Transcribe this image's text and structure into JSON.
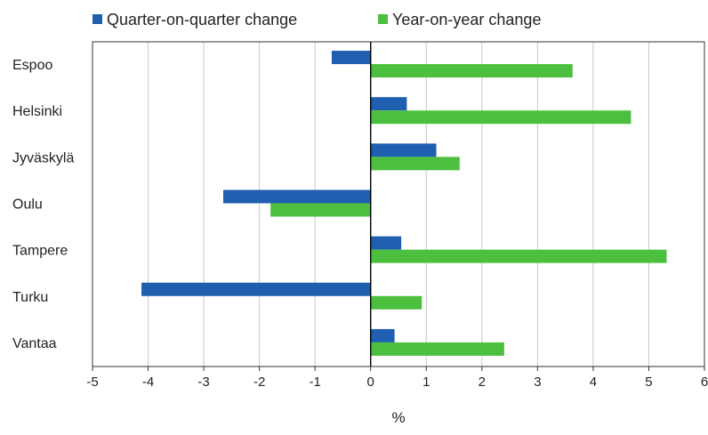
{
  "chart_data": {
    "type": "bar",
    "orientation": "horizontal",
    "categories": [
      "Espoo",
      "Helsinki",
      "Jyväskylä",
      "Oulu",
      "Tampere",
      "Turku",
      "Vantaa"
    ],
    "series": [
      {
        "name": "Quarter-on-quarter change",
        "color": "#1f5fb0",
        "values": [
          -0.7,
          0.65,
          1.18,
          -2.65,
          0.55,
          -4.12,
          0.43
        ]
      },
      {
        "name": "Year-on-year change",
        "color": "#4dbf3f",
        "values": [
          3.63,
          4.68,
          1.6,
          -1.8,
          5.32,
          0.92,
          2.4
        ]
      }
    ],
    "xlabel": "%",
    "ylabel": "",
    "xlim": [
      -5,
      6
    ],
    "xticks": [
      "-5",
      "-4",
      "-3",
      "-2",
      "-1",
      "0",
      "1",
      "2",
      "3",
      "4",
      "5",
      "6"
    ],
    "grid": "vertical",
    "legend_position": "top"
  }
}
